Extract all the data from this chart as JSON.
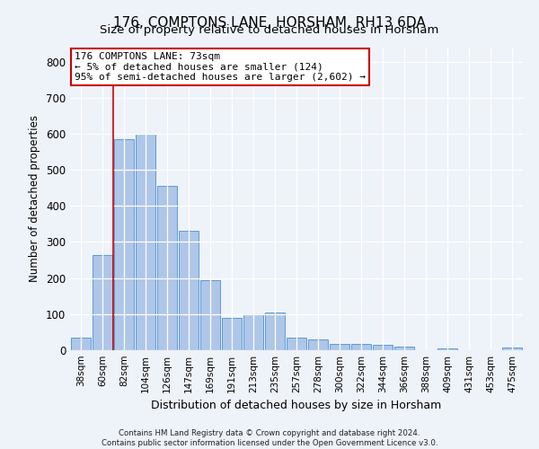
{
  "title": "176, COMPTONS LANE, HORSHAM, RH13 6DA",
  "subtitle": "Size of property relative to detached houses in Horsham",
  "xlabel": "Distribution of detached houses by size in Horsham",
  "ylabel": "Number of detached properties",
  "footer_line1": "Contains HM Land Registry data © Crown copyright and database right 2024.",
  "footer_line2": "Contains public sector information licensed under the Open Government Licence v3.0.",
  "bar_labels": [
    "38sqm",
    "60sqm",
    "82sqm",
    "104sqm",
    "126sqm",
    "147sqm",
    "169sqm",
    "191sqm",
    "213sqm",
    "235sqm",
    "257sqm",
    "278sqm",
    "300sqm",
    "322sqm",
    "344sqm",
    "366sqm",
    "388sqm",
    "409sqm",
    "431sqm",
    "453sqm",
    "475sqm"
  ],
  "bar_values": [
    35,
    265,
    585,
    600,
    455,
    330,
    195,
    90,
    100,
    105,
    35,
    30,
    18,
    17,
    14,
    10,
    0,
    6,
    0,
    0,
    7
  ],
  "bar_color": "#aec6e8",
  "bar_edge_color": "#5b9bd5",
  "annotation_box_text": "176 COMPTONS LANE: 73sqm\n← 5% of detached houses are smaller (124)\n95% of semi-detached houses are larger (2,602) →",
  "vline_color": "#cc0000",
  "annotation_box_edgecolor": "#cc0000",
  "background_color": "#eef2f9",
  "ylim": [
    0,
    840
  ],
  "yticks": [
    0,
    100,
    200,
    300,
    400,
    500,
    600,
    700,
    800
  ],
  "grid_color": "#ffffff",
  "title_fontsize": 11,
  "bar_width": 0.9
}
